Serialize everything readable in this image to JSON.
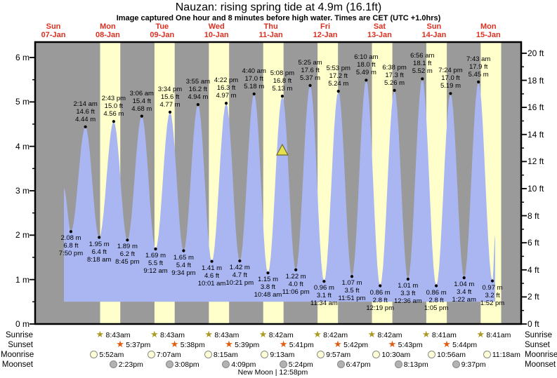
{
  "chart_data": {
    "type": "area",
    "title": "Nauzan: rising  spring tide at 4.9m (16.1ft)",
    "subtitle": "Image captured One hour and 8 minutes before high water. Times are CET (UTC +1.0hrs)",
    "days": [
      {
        "weekday": "Sun",
        "date": "07-Jan"
      },
      {
        "weekday": "Mon",
        "date": "08-Jan"
      },
      {
        "weekday": "Tue",
        "date": "09-Jan"
      },
      {
        "weekday": "Wed",
        "date": "10-Jan"
      },
      {
        "weekday": "Thu",
        "date": "11-Jan"
      },
      {
        "weekday": "Fri",
        "date": "12-Jan"
      },
      {
        "weekday": "Sat",
        "date": "13-Jan"
      },
      {
        "weekday": "Sun",
        "date": "14-Jan"
      },
      {
        "weekday": "Mon",
        "date": "15-Jan"
      }
    ],
    "y_axis_left": {
      "unit": "m",
      "tick_labels": [
        "0 m",
        "1 m",
        "2 m",
        "3 m",
        "4 m",
        "5 m",
        "6 m"
      ]
    },
    "y_axis_right": {
      "unit": "ft",
      "tick_labels": [
        "0 ft",
        "2 ft",
        "4 ft",
        "6 ft",
        "8 ft",
        "10 ft",
        "12 ft",
        "14 ft",
        "16 ft",
        "18 ft",
        "20 ft"
      ]
    },
    "tide_events": [
      {
        "day": 0,
        "time": "7:50 pm",
        "type": "low",
        "height_m": 2.08,
        "height_ft": 6.8
      },
      {
        "day": 1,
        "time": "2:14 am",
        "type": "high",
        "height_m": 4.44,
        "height_ft": 14.6
      },
      {
        "day": 1,
        "time": "8:18 am",
        "type": "low",
        "height_m": 1.95,
        "height_ft": 6.4
      },
      {
        "day": 1,
        "time": "2:43 pm",
        "type": "high",
        "height_m": 4.56,
        "height_ft": 15.0
      },
      {
        "day": 1,
        "time": "8:45 pm",
        "type": "low",
        "height_m": 1.89,
        "height_ft": 6.2
      },
      {
        "day": 2,
        "time": "3:06 am",
        "type": "high",
        "height_m": 4.68,
        "height_ft": 15.4
      },
      {
        "day": 2,
        "time": "9:12 am",
        "type": "low",
        "height_m": 1.69,
        "height_ft": 5.5
      },
      {
        "day": 2,
        "time": "3:34 pm",
        "type": "high",
        "height_m": 4.77,
        "height_ft": 15.6
      },
      {
        "day": 2,
        "time": "9:34 pm",
        "type": "low",
        "height_m": 1.65,
        "height_ft": 5.4
      },
      {
        "day": 3,
        "time": "3:55 am",
        "type": "high",
        "height_m": 4.94,
        "height_ft": 16.2
      },
      {
        "day": 3,
        "time": "10:01 am",
        "type": "low",
        "height_m": 1.41,
        "height_ft": 4.6
      },
      {
        "day": 3,
        "time": "4:22 pm",
        "type": "high",
        "height_m": 4.97,
        "height_ft": 16.3
      },
      {
        "day": 3,
        "time": "10:21 pm",
        "type": "low",
        "height_m": 1.42,
        "height_ft": 4.7
      },
      {
        "day": 4,
        "time": "4:40 am",
        "type": "high",
        "height_m": 5.18,
        "height_ft": 17.0
      },
      {
        "day": 4,
        "time": "10:48 am",
        "type": "low",
        "height_m": 1.15,
        "height_ft": 3.8
      },
      {
        "day": 4,
        "time": "5:08 pm",
        "type": "high",
        "height_m": 5.13,
        "height_ft": 16.8
      },
      {
        "day": 4,
        "time": "11:06 pm",
        "type": "low",
        "height_m": 1.22,
        "height_ft": 4.0
      },
      {
        "day": 5,
        "time": "5:25 am",
        "type": "high",
        "height_m": 5.37,
        "height_ft": 17.6
      },
      {
        "day": 5,
        "time": "11:34 am",
        "type": "low",
        "height_m": 0.96,
        "height_ft": 3.1
      },
      {
        "day": 5,
        "time": "5:53 pm",
        "type": "high",
        "height_m": 5.24,
        "height_ft": 17.2
      },
      {
        "day": 5,
        "time": "11:51 pm",
        "type": "low",
        "height_m": 1.07,
        "height_ft": 3.5
      },
      {
        "day": 6,
        "time": "6:10 am",
        "type": "high",
        "height_m": 5.49,
        "height_ft": 18.0
      },
      {
        "day": 6,
        "time": "12:19 pm",
        "type": "low",
        "height_m": 0.86,
        "height_ft": 2.8
      },
      {
        "day": 6,
        "time": "6:38 pm",
        "type": "high",
        "height_m": 5.26,
        "height_ft": 17.3
      },
      {
        "day": 7,
        "time": "12:36 am",
        "type": "low",
        "height_m": 1.01,
        "height_ft": 3.3
      },
      {
        "day": 7,
        "time": "6:56 am",
        "type": "high",
        "height_m": 5.52,
        "height_ft": 18.1
      },
      {
        "day": 7,
        "time": "1:05 pm",
        "type": "low",
        "height_m": 0.86,
        "height_ft": 2.8
      },
      {
        "day": 7,
        "time": "7:24 pm",
        "type": "high",
        "height_m": 5.19,
        "height_ft": 17.0
      },
      {
        "day": 8,
        "time": "1:22 am",
        "type": "low",
        "height_m": 1.04,
        "height_ft": 3.4
      },
      {
        "day": 8,
        "time": "7:43 am",
        "type": "high",
        "height_m": 5.45,
        "height_ft": 17.9
      },
      {
        "day": 8,
        "time": "1:52 pm",
        "type": "low",
        "height_m": 0.97,
        "height_ft": 3.2
      }
    ],
    "current_marker": {
      "shape": "triangle",
      "day": 4,
      "time": "5:08 pm"
    },
    "astro": {
      "row_labels": [
        "Sunrise",
        "Sunset",
        "Moonrise",
        "Moonset"
      ],
      "sunrise": [
        {
          "day": 1,
          "time": "8:43am"
        },
        {
          "day": 2,
          "time": "8:43am"
        },
        {
          "day": 3,
          "time": "8:43am"
        },
        {
          "day": 4,
          "time": "8:42am"
        },
        {
          "day": 5,
          "time": "8:42am"
        },
        {
          "day": 6,
          "time": "8:42am"
        },
        {
          "day": 7,
          "time": "8:41am"
        },
        {
          "day": 8,
          "time": "8:41am"
        }
      ],
      "sunset": [
        {
          "day": 1,
          "time": "5:37pm"
        },
        {
          "day": 2,
          "time": "5:38pm"
        },
        {
          "day": 3,
          "time": "5:39pm"
        },
        {
          "day": 4,
          "time": "5:41pm"
        },
        {
          "day": 5,
          "time": "5:42pm"
        },
        {
          "day": 6,
          "time": "5:43pm"
        },
        {
          "day": 7,
          "time": "5:44pm"
        }
      ],
      "moonrise": [
        {
          "day": 1,
          "time": "5:52am"
        },
        {
          "day": 2,
          "time": "7:07am"
        },
        {
          "day": 3,
          "time": "8:15am"
        },
        {
          "day": 4,
          "time": "9:13am"
        },
        {
          "day": 5,
          "time": "9:57am"
        },
        {
          "day": 6,
          "time": "10:30am"
        },
        {
          "day": 7,
          "time": "10:56am"
        },
        {
          "day": 8,
          "time": "11:18am"
        }
      ],
      "moonset": [
        {
          "day": 1,
          "time": "2:23pm"
        },
        {
          "day": 2,
          "time": "3:08pm"
        },
        {
          "day": 3,
          "time": "4:09pm"
        },
        {
          "day": 4,
          "time": "5:24pm"
        },
        {
          "day": 5,
          "time": "6:47pm"
        },
        {
          "day": 6,
          "time": "8:13pm"
        },
        {
          "day": 7,
          "time": "9:37pm"
        }
      ],
      "new_moon": {
        "label": "New Moon",
        "time": "12:58pm",
        "day": 4
      }
    },
    "colors": {
      "night_band": "#9a9a9a",
      "daylight_band": "#ffffcc",
      "tide_fill": "#a9b6f2",
      "day_label_text": "#dd2f20",
      "sunrise_star": "#ab9a22",
      "sunset_star": "#e05c10",
      "moonrise_fill": "#ffffd8",
      "moonset_fill": "#b2b2b2",
      "marker_triangle": "#e6e04e",
      "axis": "#000000"
    }
  }
}
